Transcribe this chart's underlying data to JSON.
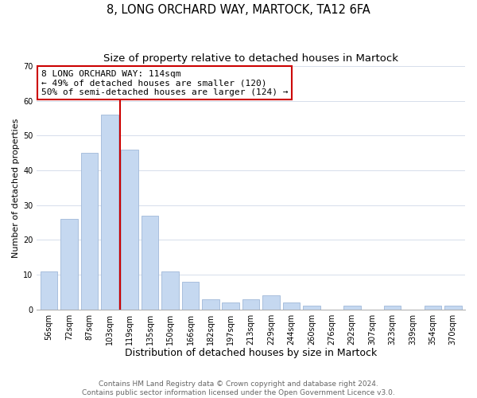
{
  "title": "8, LONG ORCHARD WAY, MARTOCK, TA12 6FA",
  "subtitle": "Size of property relative to detached houses in Martock",
  "xlabel": "Distribution of detached houses by size in Martock",
  "ylabel": "Number of detached properties",
  "bar_labels": [
    "56sqm",
    "72sqm",
    "87sqm",
    "103sqm",
    "119sqm",
    "135sqm",
    "150sqm",
    "166sqm",
    "182sqm",
    "197sqm",
    "213sqm",
    "229sqm",
    "244sqm",
    "260sqm",
    "276sqm",
    "292sqm",
    "307sqm",
    "323sqm",
    "339sqm",
    "354sqm",
    "370sqm"
  ],
  "bar_values": [
    11,
    26,
    45,
    56,
    46,
    27,
    11,
    8,
    3,
    2,
    3,
    4,
    2,
    1,
    0,
    1,
    0,
    1,
    0,
    1,
    1
  ],
  "bar_color": "#c5d8f0",
  "bar_edge_color": "#a0b8d8",
  "vline_x": 3.5,
  "vline_color": "#cc0000",
  "ylim": [
    0,
    70
  ],
  "yticks": [
    0,
    10,
    20,
    30,
    40,
    50,
    60,
    70
  ],
  "annotation_title": "8 LONG ORCHARD WAY: 114sqm",
  "annotation_line1": "← 49% of detached houses are smaller (120)",
  "annotation_line2": "50% of semi-detached houses are larger (124) →",
  "annotation_box_color": "#ffffff",
  "annotation_box_edge": "#cc0000",
  "footer_line1": "Contains HM Land Registry data © Crown copyright and database right 2024.",
  "footer_line2": "Contains public sector information licensed under the Open Government Licence v3.0.",
  "title_fontsize": 10.5,
  "subtitle_fontsize": 9.5,
  "xlabel_fontsize": 9,
  "ylabel_fontsize": 8,
  "tick_fontsize": 7,
  "annotation_fontsize": 8,
  "footer_fontsize": 6.5
}
